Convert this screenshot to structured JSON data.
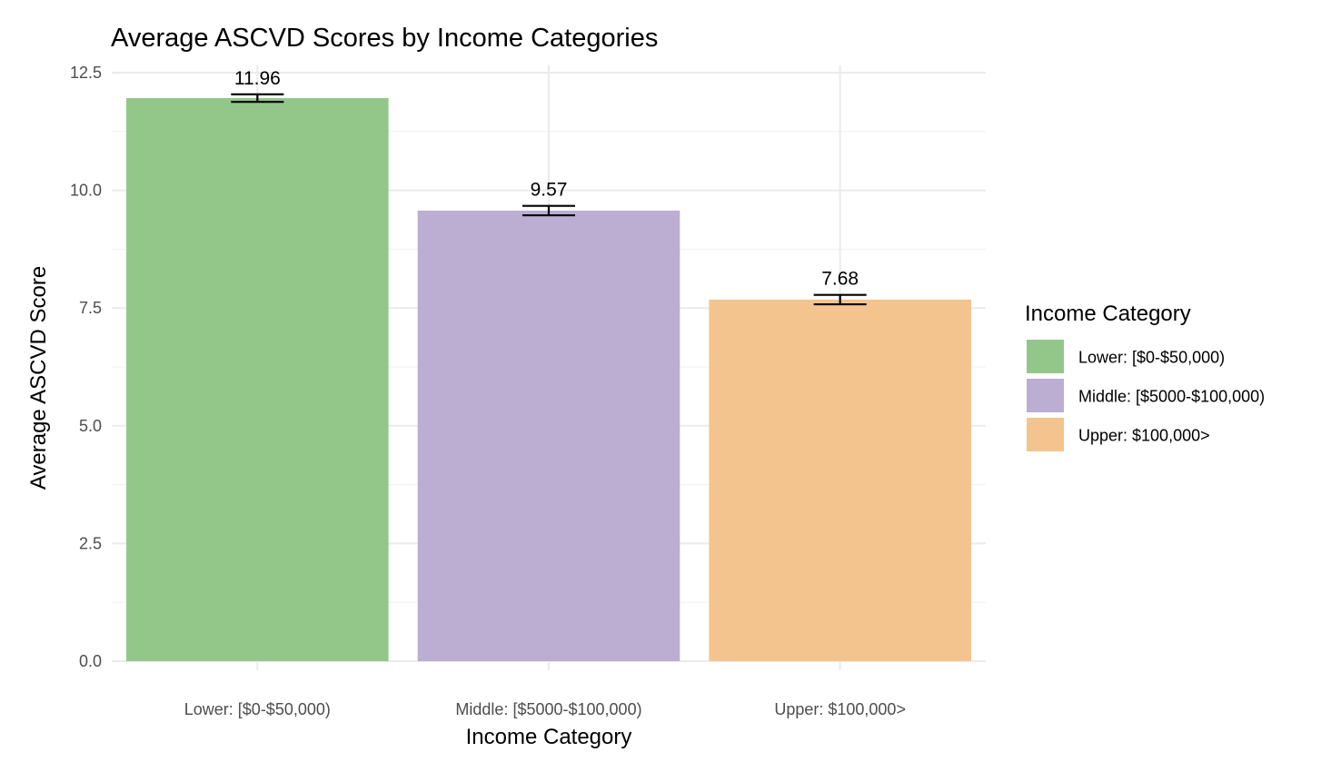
{
  "chart_data": {
    "type": "bar",
    "title": "Average ASCVD Scores by Income Categories",
    "xlabel": "Income Category",
    "ylabel": "Average ASCVD Score",
    "categories": [
      "Lower: [$0-$50,000)",
      "Middle: [$5000-$100,000)",
      "Upper: $100,000>"
    ],
    "values": [
      11.96,
      9.57,
      7.68
    ],
    "data_labels": [
      "11.96",
      "9.57",
      "7.68"
    ],
    "error_bars": [
      {
        "low": 11.88,
        "high": 12.04
      },
      {
        "low": 9.47,
        "high": 9.67
      },
      {
        "low": 7.58,
        "high": 7.78
      }
    ],
    "colors": [
      "#93C789",
      "#BCADD2",
      "#F4C48E"
    ],
    "ylim": [
      0,
      12.5
    ],
    "y_ticks": [
      0,
      2.5,
      5,
      7.5,
      10,
      12.5
    ],
    "y_tick_labels": [
      "0.0",
      "2.5",
      "5.0",
      "7.5",
      "10.0",
      "12.5"
    ],
    "grid": true,
    "legend": {
      "title": "Income Category",
      "position": "right",
      "entries": [
        "Lower: [$0-$50,000)",
        "Middle: [$5000-$100,000)",
        "Upper: $100,000>"
      ]
    }
  }
}
